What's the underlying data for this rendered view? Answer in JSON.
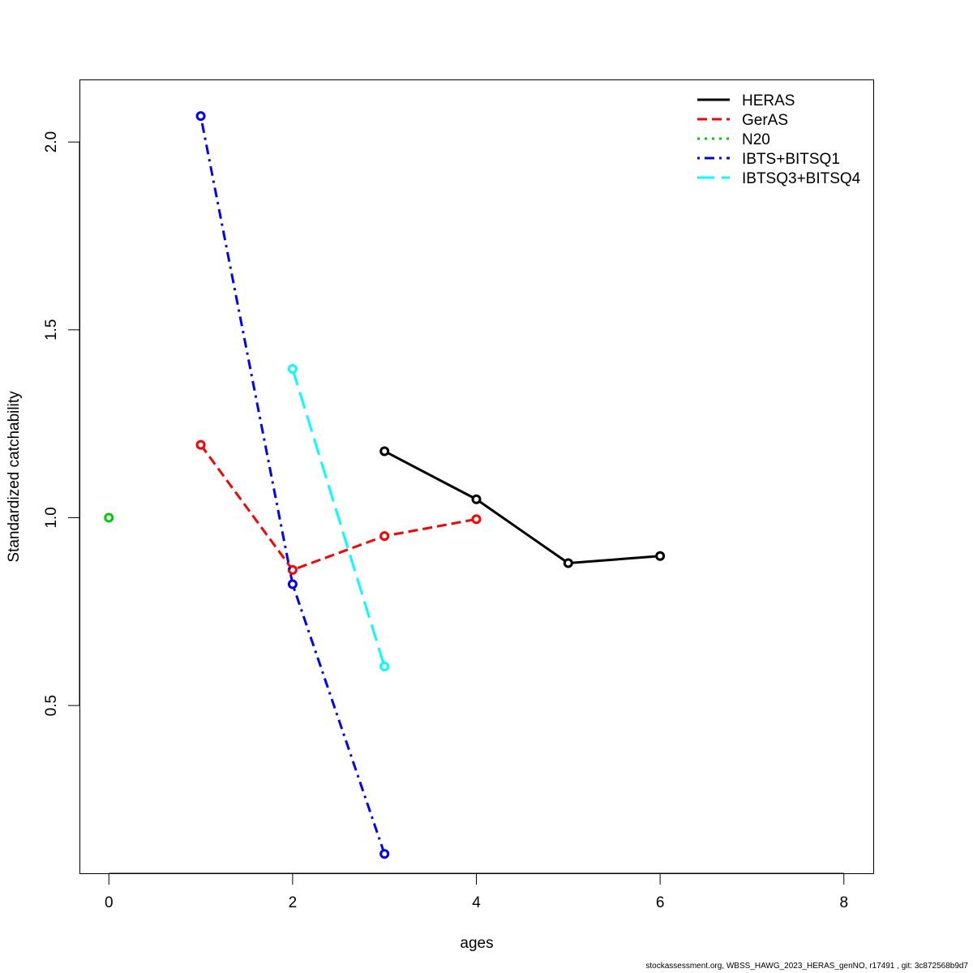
{
  "chart_data": {
    "type": "line",
    "title": "",
    "xlabel": "ages",
    "ylabel": "Standardized catchability",
    "xlim": [
      -0.32,
      8.32
    ],
    "ylim": [
      0.0535,
      2.1665
    ],
    "x_ticks": [
      0,
      2,
      4,
      6,
      8
    ],
    "y_ticks": [
      0.5,
      1.0,
      1.5,
      2.0
    ],
    "x_tick_labels": [
      "0",
      "2",
      "4",
      "6",
      "8"
    ],
    "y_tick_labels": [
      "0.5",
      "1.0",
      "1.5",
      "2.0"
    ],
    "grid": false,
    "legend_position": "top-right",
    "series": [
      {
        "name": "HERAS",
        "color": "#000000",
        "dash": "solid",
        "x": [
          3,
          4,
          5,
          6
        ],
        "y": [
          1.177,
          1.049,
          0.879,
          0.898
        ]
      },
      {
        "name": "GerAS",
        "color": "#ff0000",
        "dash": "dashed",
        "x": [
          1,
          2,
          3,
          4
        ],
        "y": [
          1.194,
          0.861,
          0.951,
          0.996
        ]
      },
      {
        "name": "N20",
        "color": "#00cd00",
        "dash": "dotted",
        "x": [
          0
        ],
        "y": [
          1.0
        ]
      },
      {
        "name": "IBTS+BITSQ1",
        "color": "#0000ff",
        "dash": "dotdash",
        "x": [
          1,
          2,
          3
        ],
        "y": [
          2.069,
          0.823,
          0.105
        ]
      },
      {
        "name": "IBTSQ3+BITSQ4",
        "color": "#00ffff",
        "dash": "longdash",
        "x": [
          2,
          3
        ],
        "y": [
          1.396,
          0.604
        ]
      }
    ]
  },
  "footer": "stockassessment.org, WBSS_HAWG_2023_HERAS_genNO, r17491 , git: 3c872568b9d7"
}
